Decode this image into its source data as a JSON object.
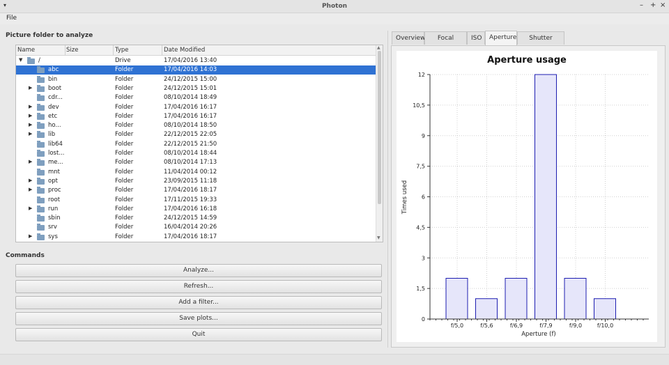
{
  "window": {
    "title": "Photon",
    "controls": [
      "–",
      "+",
      "×"
    ]
  },
  "menubar": {
    "items": [
      "File"
    ]
  },
  "left": {
    "folder_label": "Picture folder to analyze",
    "columns": [
      "Name",
      "Size",
      "Type",
      "Date Modified"
    ],
    "rows": [
      {
        "name": "/",
        "type": "Drive",
        "date": "17/04/2016 13:40",
        "expand": "open",
        "indent": 0
      },
      {
        "name": "abc",
        "type": "Folder",
        "date": "17/04/2016 14:03",
        "expand": "none",
        "indent": 1,
        "selected": true
      },
      {
        "name": "bin",
        "type": "Folder",
        "date": "24/12/2015 15:00",
        "expand": "none",
        "indent": 1
      },
      {
        "name": "boot",
        "type": "Folder",
        "date": "24/12/2015 15:01",
        "expand": "closed",
        "indent": 1
      },
      {
        "name": "cdr...",
        "type": "Folder",
        "date": "08/10/2014 18:49",
        "expand": "none",
        "indent": 1
      },
      {
        "name": "dev",
        "type": "Folder",
        "date": "17/04/2016 16:17",
        "expand": "closed",
        "indent": 1
      },
      {
        "name": "etc",
        "type": "Folder",
        "date": "17/04/2016 16:17",
        "expand": "closed",
        "indent": 1
      },
      {
        "name": "ho...",
        "type": "Folder",
        "date": "08/10/2014 18:50",
        "expand": "closed",
        "indent": 1
      },
      {
        "name": "lib",
        "type": "Folder",
        "date": "22/12/2015 22:05",
        "expand": "closed",
        "indent": 1
      },
      {
        "name": "lib64",
        "type": "Folder",
        "date": "22/12/2015 21:50",
        "expand": "none",
        "indent": 1
      },
      {
        "name": "lost...",
        "type": "Folder",
        "date": "08/10/2014 18:44",
        "expand": "none",
        "indent": 1
      },
      {
        "name": "me...",
        "type": "Folder",
        "date": "08/10/2014 17:13",
        "expand": "closed",
        "indent": 1
      },
      {
        "name": "mnt",
        "type": "Folder",
        "date": "11/04/2014 00:12",
        "expand": "none",
        "indent": 1
      },
      {
        "name": "opt",
        "type": "Folder",
        "date": "23/09/2015 11:18",
        "expand": "closed",
        "indent": 1
      },
      {
        "name": "proc",
        "type": "Folder",
        "date": "17/04/2016 18:17",
        "expand": "closed",
        "indent": 1
      },
      {
        "name": "root",
        "type": "Folder",
        "date": "17/11/2015 19:33",
        "expand": "none",
        "indent": 1
      },
      {
        "name": "run",
        "type": "Folder",
        "date": "17/04/2016 16:18",
        "expand": "closed",
        "indent": 1
      },
      {
        "name": "sbin",
        "type": "Folder",
        "date": "24/12/2015 14:59",
        "expand": "none",
        "indent": 1
      },
      {
        "name": "srv",
        "type": "Folder",
        "date": "16/04/2014 20:26",
        "expand": "none",
        "indent": 1
      },
      {
        "name": "sys",
        "type": "Folder",
        "date": "17/04/2016 18:17",
        "expand": "closed",
        "indent": 1
      }
    ],
    "commands_label": "Commands",
    "buttons": [
      "Analyze...",
      "Refresh...",
      "Add a filter...",
      "Save plots...",
      "Quit"
    ]
  },
  "right": {
    "tabs": [
      "Overview",
      "Focal length",
      "ISO",
      "Aperture",
      "Shutter speed"
    ],
    "active_tab": 3
  },
  "colors": {
    "selection": "#2f72d3",
    "bar_fill": "#e6e6fa",
    "bar_stroke": "#1c1cb0"
  },
  "chart_data": {
    "type": "bar",
    "title": "Aperture usage",
    "xlabel": "Aperture (f)",
    "ylabel": "Times used",
    "categories": [
      "f/5,0",
      "f/5,6",
      "f/6,9",
      "f/7,9",
      "f/9,0",
      "f/10,0"
    ],
    "values": [
      2,
      1,
      2,
      12,
      2,
      1
    ],
    "yticks": [
      "0",
      "1,5",
      "3",
      "4,5",
      "6",
      "7,5",
      "9",
      "10,5",
      "12"
    ],
    "ylim": [
      0,
      12
    ],
    "grid": true
  }
}
